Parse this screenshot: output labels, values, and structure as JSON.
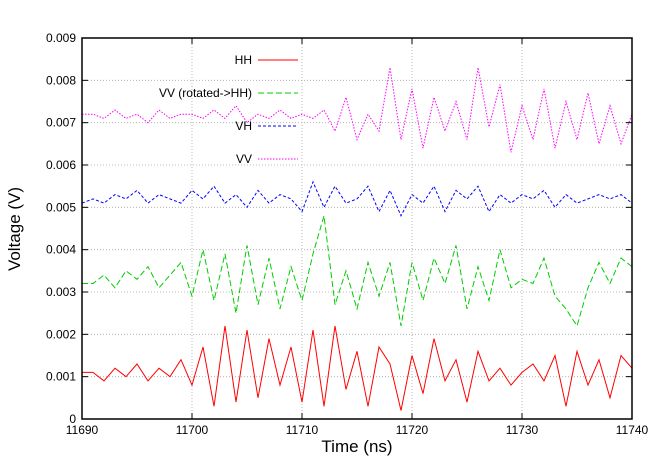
{
  "chart_data": {
    "type": "line",
    "xlabel": "Time (ns)",
    "ylabel": "Voltage (V)",
    "xlim": [
      11690,
      11740
    ],
    "ylim": [
      0,
      0.009
    ],
    "xticks": [
      "11690",
      "11700",
      "11710",
      "11720",
      "11730",
      "11740"
    ],
    "yticks": [
      "0",
      "0.001",
      "0.002",
      "0.003",
      "0.004",
      "0.005",
      "0.006",
      "0.007",
      "0.008",
      "0.009"
    ],
    "grid": true,
    "legend_position": "top-left",
    "series": [
      {
        "name": "HH",
        "color": "#ff0000",
        "dash": "solid",
        "x": [
          11690,
          11691,
          11692,
          11693,
          11694,
          11695,
          11696,
          11697,
          11698,
          11699,
          11700,
          11701,
          11702,
          11703,
          11704,
          11705,
          11706,
          11707,
          11708,
          11709,
          11710,
          11711,
          11712,
          11713,
          11714,
          11715,
          11716,
          11717,
          11718,
          11719,
          11720,
          11721,
          11722,
          11723,
          11724,
          11725,
          11726,
          11727,
          11728,
          11729,
          11730,
          11731,
          11732,
          11733,
          11734,
          11735,
          11736,
          11737,
          11738,
          11739,
          11740
        ],
        "y": [
          0.0011,
          0.0011,
          0.0009,
          0.0012,
          0.001,
          0.0013,
          0.0009,
          0.0012,
          0.001,
          0.0014,
          0.0008,
          0.0017,
          0.0003,
          0.0022,
          0.0004,
          0.0021,
          0.0005,
          0.0019,
          0.0008,
          0.0017,
          0.0004,
          0.0021,
          0.0003,
          0.0022,
          0.0007,
          0.0016,
          0.0003,
          0.0017,
          0.0013,
          0.0002,
          0.0015,
          0.0006,
          0.0019,
          0.0009,
          0.0014,
          0.0004,
          0.0016,
          0.0009,
          0.0012,
          0.0008,
          0.0011,
          0.0013,
          0.0009,
          0.0015,
          0.0003,
          0.0016,
          0.0008,
          0.0014,
          0.0005,
          0.0015,
          0.0012
        ]
      },
      {
        "name": "VV (rotated->HH)",
        "color": "#00cc00",
        "dash": "6,3",
        "x": [
          11690,
          11691,
          11692,
          11693,
          11694,
          11695,
          11696,
          11697,
          11698,
          11699,
          11700,
          11701,
          11702,
          11703,
          11704,
          11705,
          11706,
          11707,
          11708,
          11709,
          11710,
          11711,
          11712,
          11713,
          11714,
          11715,
          11716,
          11717,
          11718,
          11719,
          11720,
          11721,
          11722,
          11723,
          11724,
          11725,
          11726,
          11727,
          11728,
          11729,
          11730,
          11731,
          11732,
          11733,
          11734,
          11735,
          11736,
          11737,
          11738,
          11739,
          11740
        ],
        "y": [
          0.0032,
          0.0032,
          0.0034,
          0.0031,
          0.0035,
          0.0033,
          0.0036,
          0.0031,
          0.0034,
          0.0037,
          0.0029,
          0.004,
          0.0028,
          0.0039,
          0.0025,
          0.0041,
          0.0027,
          0.0038,
          0.0026,
          0.0036,
          0.0028,
          0.0039,
          0.0048,
          0.0027,
          0.0035,
          0.0026,
          0.0037,
          0.0029,
          0.0037,
          0.0022,
          0.0037,
          0.0028,
          0.0038,
          0.0032,
          0.0041,
          0.0026,
          0.0036,
          0.0028,
          0.004,
          0.0031,
          0.0033,
          0.0032,
          0.0038,
          0.0029,
          0.0026,
          0.0022,
          0.0031,
          0.0037,
          0.0032,
          0.0038,
          0.0036
        ]
      },
      {
        "name": "VH",
        "color": "#0000ff",
        "dash": "3,2",
        "x": [
          11690,
          11691,
          11692,
          11693,
          11694,
          11695,
          11696,
          11697,
          11698,
          11699,
          11700,
          11701,
          11702,
          11703,
          11704,
          11705,
          11706,
          11707,
          11708,
          11709,
          11710,
          11711,
          11712,
          11713,
          11714,
          11715,
          11716,
          11717,
          11718,
          11719,
          11720,
          11721,
          11722,
          11723,
          11724,
          11725,
          11726,
          11727,
          11728,
          11729,
          11730,
          11731,
          11732,
          11733,
          11734,
          11735,
          11736,
          11737,
          11738,
          11739,
          11740
        ],
        "y": [
          0.0051,
          0.0052,
          0.0051,
          0.0053,
          0.0052,
          0.0054,
          0.0051,
          0.0053,
          0.0052,
          0.0051,
          0.0054,
          0.0052,
          0.0055,
          0.0051,
          0.0053,
          0.005,
          0.0054,
          0.0051,
          0.0053,
          0.0052,
          0.0049,
          0.0056,
          0.005,
          0.0055,
          0.0051,
          0.0052,
          0.0055,
          0.0049,
          0.0054,
          0.0048,
          0.0053,
          0.0051,
          0.0055,
          0.0049,
          0.0054,
          0.0052,
          0.0055,
          0.0049,
          0.0053,
          0.0051,
          0.0053,
          0.0052,
          0.0054,
          0.005,
          0.0053,
          0.0051,
          0.0052,
          0.0053,
          0.0052,
          0.0053,
          0.0051
        ]
      },
      {
        "name": "VV",
        "color": "#ff00ff",
        "dash": "1.5,1.5",
        "x": [
          11690,
          11691,
          11692,
          11693,
          11694,
          11695,
          11696,
          11697,
          11698,
          11699,
          11700,
          11701,
          11702,
          11703,
          11704,
          11705,
          11706,
          11707,
          11708,
          11709,
          11710,
          11711,
          11712,
          11713,
          11714,
          11715,
          11716,
          11717,
          11718,
          11719,
          11720,
          11721,
          11722,
          11723,
          11724,
          11725,
          11726,
          11727,
          11728,
          11729,
          11730,
          11731,
          11732,
          11733,
          11734,
          11735,
          11736,
          11737,
          11738,
          11739,
          11740
        ],
        "y": [
          0.0072,
          0.0072,
          0.0071,
          0.0073,
          0.0071,
          0.0072,
          0.007,
          0.0073,
          0.0071,
          0.0072,
          0.0072,
          0.0071,
          0.0073,
          0.0071,
          0.0074,
          0.007,
          0.0072,
          0.0071,
          0.0073,
          0.0071,
          0.0072,
          0.0071,
          0.0073,
          0.0068,
          0.0076,
          0.0066,
          0.0072,
          0.0068,
          0.0083,
          0.0066,
          0.0078,
          0.0064,
          0.0076,
          0.0068,
          0.0075,
          0.0066,
          0.0083,
          0.0069,
          0.0079,
          0.0063,
          0.0074,
          0.0066,
          0.0078,
          0.0064,
          0.0075,
          0.0066,
          0.0077,
          0.0065,
          0.0074,
          0.0065,
          0.0072
        ]
      }
    ]
  }
}
